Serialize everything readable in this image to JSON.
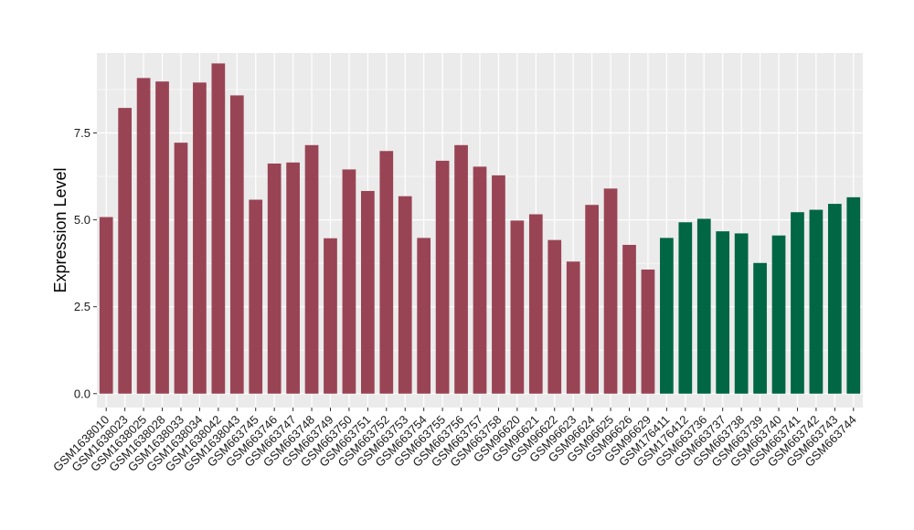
{
  "chart_data": {
    "type": "bar",
    "title": "",
    "xlabel": "",
    "ylabel": "Expression Level",
    "ylim": [
      -0.4,
      9.8
    ],
    "yticks": [
      0.0,
      2.5,
      5.0,
      7.5
    ],
    "ytick_labels": [
      "0.0",
      "2.5",
      "5.0",
      "7.5"
    ],
    "grid": true,
    "background_color": "#EBEBEB",
    "categories": [
      "GSM1638010",
      "GSM1638023",
      "GSM1638025",
      "GSM1638028",
      "GSM1638033",
      "GSM1638034",
      "GSM1638042",
      "GSM1638043",
      "GSM663745",
      "GSM663746",
      "GSM663747",
      "GSM663748",
      "GSM663749",
      "GSM663750",
      "GSM663751",
      "GSM663752",
      "GSM663753",
      "GSM663754",
      "GSM663755",
      "GSM663756",
      "GSM663757",
      "GSM663758",
      "GSM96620",
      "GSM96621",
      "GSM96622",
      "GSM96623",
      "GSM96624",
      "GSM96625",
      "GSM96626",
      "GSM96629",
      "GSM176411",
      "GSM176412",
      "GSM663736",
      "GSM663737",
      "GSM663738",
      "GSM663739",
      "GSM663740",
      "GSM663741",
      "GSM663742",
      "GSM663743",
      "GSM663744"
    ],
    "values": [
      5.08,
      8.22,
      9.08,
      8.98,
      7.22,
      8.95,
      9.5,
      8.58,
      5.58,
      6.62,
      6.65,
      7.15,
      4.47,
      6.45,
      5.83,
      6.98,
      5.68,
      4.48,
      6.7,
      7.15,
      6.53,
      6.28,
      4.98,
      5.16,
      4.42,
      3.8,
      5.43,
      5.9,
      4.28,
      3.57,
      4.48,
      4.93,
      5.03,
      4.67,
      4.61,
      3.76,
      4.55,
      5.22,
      5.29,
      5.46,
      5.65
    ],
    "colors": [
      "#994455",
      "#994455",
      "#994455",
      "#994455",
      "#994455",
      "#994455",
      "#994455",
      "#994455",
      "#994455",
      "#994455",
      "#994455",
      "#994455",
      "#994455",
      "#994455",
      "#994455",
      "#994455",
      "#994455",
      "#994455",
      "#994455",
      "#994455",
      "#994455",
      "#994455",
      "#994455",
      "#994455",
      "#994455",
      "#994455",
      "#994455",
      "#994455",
      "#994455",
      "#994455",
      "#006644",
      "#006644",
      "#006644",
      "#006644",
      "#006644",
      "#006644",
      "#006644",
      "#006644",
      "#006644",
      "#006644",
      "#006644"
    ]
  }
}
